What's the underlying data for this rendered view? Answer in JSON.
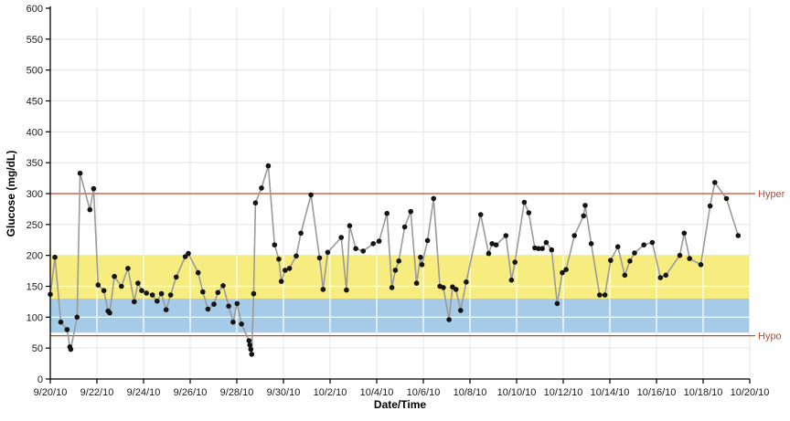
{
  "chart_data": {
    "type": "line",
    "title": "",
    "xlabel": "Date/Time",
    "ylabel": "Glucose (mg/dL)",
    "ylim": [
      0,
      600
    ],
    "y_tick_interval": 50,
    "y_tick_labels": [
      "0",
      "50",
      "100",
      "150",
      "200",
      "250",
      "300",
      "350",
      "400",
      "450",
      "500",
      "550",
      "600"
    ],
    "x_range_days": [
      0,
      30
    ],
    "x_tick_interval_days": 2,
    "x_tick_labels": [
      "9/20/10",
      "9/22/10",
      "9/24/10",
      "9/26/10",
      "9/28/10",
      "9/30/10",
      "10/2/10",
      "10/4/10",
      "10/6/10",
      "10/8/10",
      "10/10/10",
      "10/12/10",
      "10/14/10",
      "10/16/10",
      "10/18/10",
      "10/20/10"
    ],
    "grid": true,
    "legend_position": "none",
    "colors": {
      "line": "#9a9a9a",
      "marker": "#141414",
      "reference": "#c2492b",
      "band_upper": "#f6ec7f",
      "band_lower": "#a6cbe8",
      "grid_gray": "#e4e4e4",
      "grid_white": "#ffffff",
      "axis": "#000000"
    },
    "reference_lines": [
      {
        "label": "Hyper",
        "value": 300
      },
      {
        "label": "Hypo",
        "value": 70
      }
    ],
    "bands": [
      {
        "name": "target-band-yellow",
        "from": 130,
        "to": 200
      },
      {
        "name": "target-band-blue",
        "from": 75,
        "to": 130
      }
    ],
    "series": [
      {
        "name": "glucose",
        "points": [
          [
            0.0,
            137
          ],
          [
            0.2,
            197
          ],
          [
            0.45,
            92
          ],
          [
            0.72,
            80
          ],
          [
            0.84,
            52
          ],
          [
            0.88,
            48
          ],
          [
            1.15,
            100
          ],
          [
            1.28,
            333
          ],
          [
            1.7,
            274
          ],
          [
            1.86,
            308
          ],
          [
            2.05,
            152
          ],
          [
            2.3,
            143
          ],
          [
            2.48,
            110
          ],
          [
            2.55,
            107
          ],
          [
            2.75,
            166
          ],
          [
            3.05,
            150
          ],
          [
            3.33,
            179
          ],
          [
            3.6,
            125
          ],
          [
            3.76,
            155
          ],
          [
            3.92,
            143
          ],
          [
            4.12,
            139
          ],
          [
            4.38,
            136
          ],
          [
            4.58,
            126
          ],
          [
            4.77,
            138
          ],
          [
            4.97,
            112
          ],
          [
            5.16,
            136
          ],
          [
            5.4,
            165
          ],
          [
            5.79,
            198
          ],
          [
            5.92,
            203
          ],
          [
            6.34,
            172
          ],
          [
            6.54,
            141
          ],
          [
            6.76,
            113
          ],
          [
            7.02,
            121
          ],
          [
            7.19,
            140
          ],
          [
            7.41,
            151
          ],
          [
            7.65,
            118
          ],
          [
            7.84,
            92
          ],
          [
            8.01,
            122
          ],
          [
            8.2,
            89
          ],
          [
            8.52,
            62
          ],
          [
            8.56,
            55
          ],
          [
            8.6,
            48
          ],
          [
            8.64,
            40
          ],
          [
            8.72,
            138
          ],
          [
            8.8,
            285
          ],
          [
            9.06,
            309
          ],
          [
            9.35,
            345
          ],
          [
            9.62,
            217
          ],
          [
            9.8,
            194
          ],
          [
            9.91,
            158
          ],
          [
            10.07,
            176
          ],
          [
            10.26,
            179
          ],
          [
            10.55,
            199
          ],
          [
            10.75,
            236
          ],
          [
            11.18,
            298
          ],
          [
            11.55,
            196
          ],
          [
            11.7,
            145
          ],
          [
            11.9,
            205
          ],
          [
            12.48,
            229
          ],
          [
            12.7,
            144
          ],
          [
            12.84,
            248
          ],
          [
            13.1,
            211
          ],
          [
            13.42,
            207
          ],
          [
            13.85,
            219
          ],
          [
            14.1,
            223
          ],
          [
            14.44,
            268
          ],
          [
            14.65,
            148
          ],
          [
            14.8,
            176
          ],
          [
            14.95,
            191
          ],
          [
            15.2,
            246
          ],
          [
            15.46,
            271
          ],
          [
            15.71,
            155
          ],
          [
            15.88,
            197
          ],
          [
            15.94,
            185
          ],
          [
            16.18,
            224
          ],
          [
            16.44,
            292
          ],
          [
            16.71,
            150
          ],
          [
            16.86,
            148
          ],
          [
            17.1,
            96
          ],
          [
            17.25,
            149
          ],
          [
            17.4,
            145
          ],
          [
            17.6,
            111
          ],
          [
            17.84,
            157
          ],
          [
            18.46,
            266
          ],
          [
            18.8,
            203
          ],
          [
            18.95,
            219
          ],
          [
            19.12,
            217
          ],
          [
            19.54,
            232
          ],
          [
            19.78,
            160
          ],
          [
            19.93,
            189
          ],
          [
            20.33,
            286
          ],
          [
            20.52,
            269
          ],
          [
            20.78,
            212
          ],
          [
            20.94,
            211
          ],
          [
            21.1,
            211
          ],
          [
            21.27,
            221
          ],
          [
            21.5,
            209
          ],
          [
            21.74,
            122
          ],
          [
            21.96,
            172
          ],
          [
            22.12,
            177
          ],
          [
            22.48,
            232
          ],
          [
            22.87,
            264
          ],
          [
            22.94,
            281
          ],
          [
            23.2,
            219
          ],
          [
            23.56,
            136
          ],
          [
            23.79,
            136
          ],
          [
            24.03,
            192
          ],
          [
            24.34,
            214
          ],
          [
            24.64,
            168
          ],
          [
            24.86,
            191
          ],
          [
            25.06,
            204
          ],
          [
            25.46,
            217
          ],
          [
            25.82,
            221
          ],
          [
            26.17,
            164
          ],
          [
            26.4,
            168
          ],
          [
            27.0,
            200
          ],
          [
            27.19,
            236
          ],
          [
            27.42,
            195
          ],
          [
            27.9,
            185
          ],
          [
            28.3,
            280
          ],
          [
            28.5,
            318
          ],
          [
            29.0,
            292
          ],
          [
            29.5,
            232
          ]
        ]
      }
    ]
  }
}
